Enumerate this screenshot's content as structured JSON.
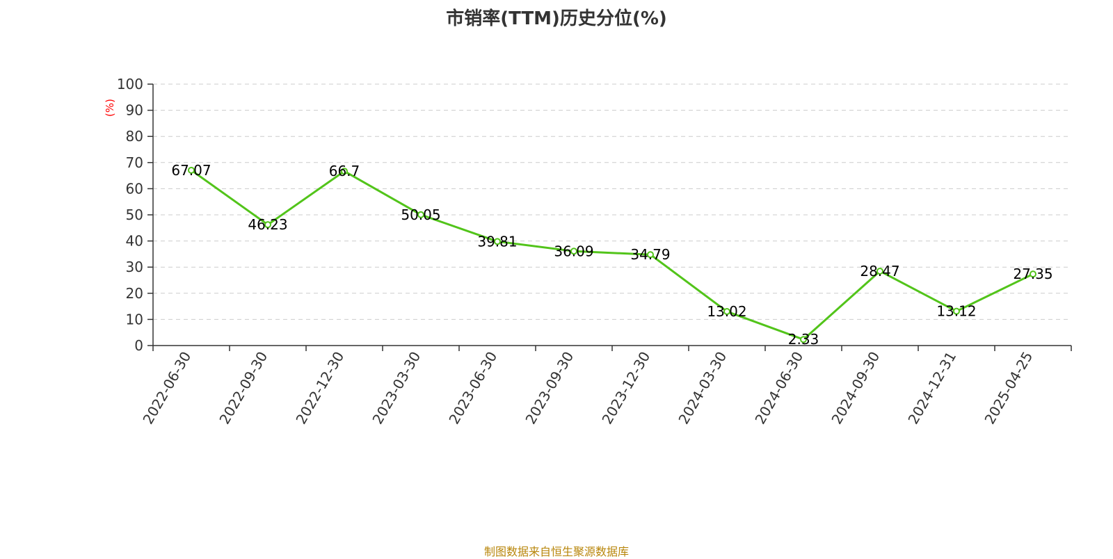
{
  "title": "市销率(TTM)历史分位(%)",
  "footer": "制图数据来自恒生聚源数据库",
  "colors": {
    "line": "#52c41a",
    "axis": "#333333",
    "grid": "#cccccc",
    "unit": "#ff0000",
    "footer": "#b8860b"
  },
  "chart_data": {
    "type": "line",
    "title": "市销率(TTM)历史分位(%)",
    "ylabel": "(%)",
    "xlabel": "",
    "ylim": [
      0,
      100
    ],
    "yticks": [
      0,
      10,
      20,
      30,
      40,
      50,
      60,
      70,
      80,
      90,
      100
    ],
    "grid": true,
    "categories": [
      "2022-06-30",
      "2022-09-30",
      "2022-12-30",
      "2023-03-30",
      "2023-06-30",
      "2023-09-30",
      "2023-12-30",
      "2024-03-30",
      "2024-06-30",
      "2024-09-30",
      "2024-12-31",
      "2025-04-25"
    ],
    "series": [
      {
        "values": [
          67.07,
          46.23,
          66.7,
          50.05,
          39.81,
          36.09,
          34.79,
          13.02,
          2.33,
          28.47,
          13.12,
          27.35
        ],
        "labels": [
          "67.07",
          "46.23",
          "66.7",
          "50.05",
          "39.81",
          "36.09",
          "34.79",
          "13.02",
          "2.33",
          "28.47",
          "13.12",
          "27.35"
        ]
      }
    ]
  }
}
